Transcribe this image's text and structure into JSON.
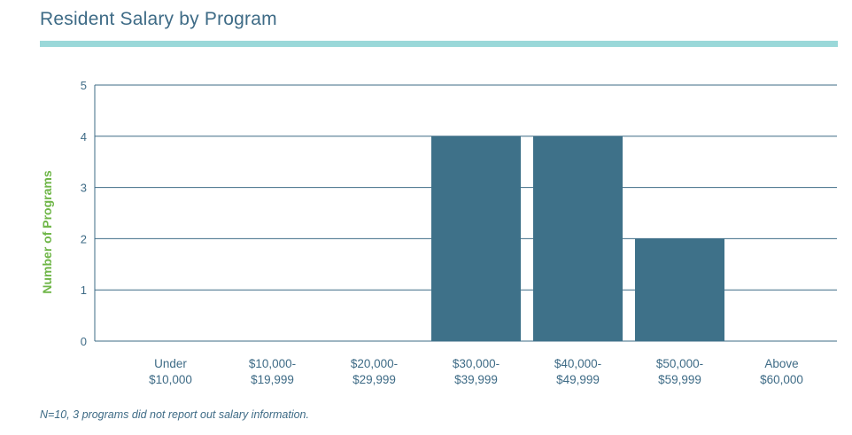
{
  "title": "Resident Salary by Program",
  "footnote": "N=10, 3 programs did not report out salary information.",
  "colors": {
    "bar": "#3e7189",
    "axis": "#3e6b86",
    "grid": "#3e6b86",
    "ylabel": "#6fb648",
    "rule": "#9ad8d9"
  },
  "chart_data": {
    "type": "bar",
    "title": "Resident Salary by Program",
    "xlabel": "",
    "ylabel": "Number of Programs",
    "ylim": [
      0,
      5
    ],
    "yticks": [
      0,
      1,
      2,
      3,
      4,
      5
    ],
    "categories": [
      [
        "Under",
        "$10,000"
      ],
      [
        "$10,000-",
        "$19,999"
      ],
      [
        "$20,000-",
        "$29,999"
      ],
      [
        "$30,000-",
        "$39,999"
      ],
      [
        "$40,000-",
        "$49,999"
      ],
      [
        "$50,000-",
        "$59,999"
      ],
      [
        "Above",
        "$60,000"
      ]
    ],
    "values": [
      0,
      0,
      0,
      4,
      4,
      2,
      0
    ],
    "grid": true
  }
}
